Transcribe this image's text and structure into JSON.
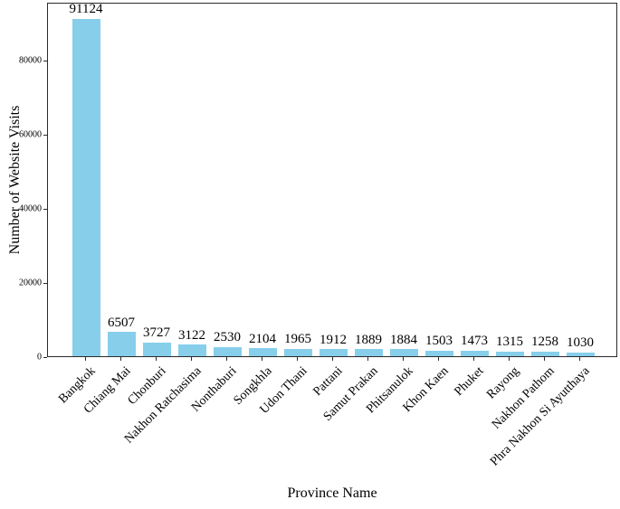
{
  "chart_data": {
    "type": "bar",
    "title": "",
    "xlabel": "Province Name",
    "ylabel": "Number of Website Visits",
    "categories": [
      "Bangkok",
      "Chiang Mai",
      "Chonburi",
      "Nakhon Ratchasima",
      "Nonthaburi",
      "Songkhla",
      "Udon Thani",
      "Pattani",
      "Samut Prakan",
      "Phitsanulok",
      "Khon Kaen",
      "Phuket",
      "Rayong",
      "Nakhon Pathom",
      "Phra Nakhon Si Ayutthaya"
    ],
    "values": [
      91124,
      6507,
      3727,
      3122,
      2530,
      2104,
      1965,
      1912,
      1889,
      1884,
      1503,
      1473,
      1315,
      1258,
      1030
    ],
    "bar_labels_shown": true,
    "bar_color": "#87CEEB",
    "spine_color": "#2a2a2a",
    "yticks": [
      0,
      20000,
      40000,
      60000,
      80000
    ],
    "ylim": [
      0,
      95680
    ],
    "grid": false,
    "legend": null,
    "xtick_rotation_deg": 45
  }
}
